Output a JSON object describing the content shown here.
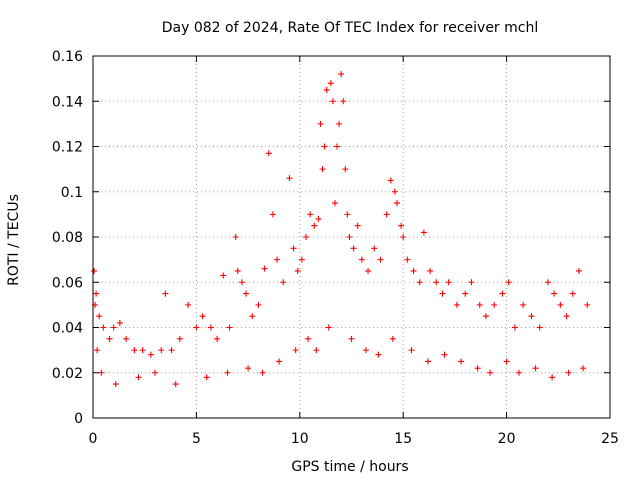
{
  "chart_data": {
    "type": "scatter",
    "title": "Day 082 of 2024, Rate Of TEC Index for receiver mchl",
    "xlabel": "GPS time / hours",
    "ylabel": "ROTI / TECUs",
    "xlim": [
      0,
      25
    ],
    "ylim": [
      0,
      0.16
    ],
    "xticks": [
      0,
      5,
      10,
      15,
      20,
      25
    ],
    "xtick_labels": [
      "0",
      "5",
      "10",
      "15",
      "20",
      "25"
    ],
    "yticks": [
      0,
      0.02,
      0.04,
      0.06,
      0.08,
      0.1,
      0.12,
      0.14,
      0.16
    ],
    "ytick_labels": [
      "0",
      "0.02",
      "0.04",
      "0.06",
      "0.08",
      "0.1",
      "0.12",
      "0.14",
      "0.16"
    ],
    "grid": true,
    "marker": "plus",
    "color": "#ff0000",
    "series": [
      {
        "name": "ROTI",
        "x": [
          0.05,
          0.1,
          0.15,
          0.2,
          0.3,
          0.5,
          0.8,
          1.0,
          1.3,
          1.6,
          2.0,
          2.4,
          2.8,
          3.3,
          3.5,
          3.8,
          4.2,
          4.6,
          5.0,
          5.3,
          5.7,
          6.0,
          6.3,
          6.6,
          6.9,
          7.0,
          7.2,
          7.4,
          7.7,
          8.0,
          8.3,
          8.5,
          8.7,
          8.9,
          9.2,
          9.5,
          9.7,
          9.9,
          10.1,
          10.3,
          10.5,
          10.7,
          10.9,
          11.0,
          11.1,
          11.2,
          11.3,
          11.5,
          11.6,
          11.7,
          11.8,
          11.9,
          12.0,
          12.1,
          12.2,
          12.3,
          12.4,
          12.6,
          12.8,
          13.0,
          13.3,
          13.6,
          13.9,
          14.2,
          14.4,
          14.6,
          14.7,
          14.9,
          15.0,
          15.2,
          15.5,
          15.8,
          16.0,
          16.3,
          16.6,
          16.9,
          17.2,
          17.6,
          18.0,
          18.3,
          18.7,
          19.0,
          19.4,
          19.8,
          20.1,
          20.4,
          20.8,
          21.2,
          21.6,
          22.0,
          22.3,
          22.6,
          22.9,
          23.2,
          23.5,
          23.9,
          0.4,
          1.1,
          2.2,
          3.0,
          4.0,
          5.5,
          6.5,
          7.5,
          8.2,
          9.0,
          9.8,
          10.4,
          10.8,
          11.4,
          12.5,
          13.2,
          13.8,
          14.5,
          15.4,
          16.2,
          17.0,
          17.8,
          18.6,
          19.2,
          20.0,
          20.6,
          21.4,
          22.2,
          23.0,
          23.7
        ],
        "y": [
          0.065,
          0.05,
          0.055,
          0.03,
          0.045,
          0.04,
          0.035,
          0.04,
          0.042,
          0.035,
          0.03,
          0.03,
          0.028,
          0.03,
          0.055,
          0.03,
          0.035,
          0.05,
          0.04,
          0.045,
          0.04,
          0.035,
          0.063,
          0.04,
          0.08,
          0.065,
          0.06,
          0.055,
          0.045,
          0.05,
          0.066,
          0.117,
          0.09,
          0.07,
          0.06,
          0.106,
          0.075,
          0.065,
          0.07,
          0.08,
          0.09,
          0.085,
          0.088,
          0.13,
          0.11,
          0.12,
          0.145,
          0.148,
          0.14,
          0.095,
          0.12,
          0.13,
          0.152,
          0.14,
          0.11,
          0.09,
          0.08,
          0.075,
          0.085,
          0.07,
          0.065,
          0.075,
          0.07,
          0.09,
          0.105,
          0.1,
          0.095,
          0.085,
          0.08,
          0.07,
          0.065,
          0.06,
          0.082,
          0.065,
          0.06,
          0.055,
          0.06,
          0.05,
          0.055,
          0.06,
          0.05,
          0.045,
          0.05,
          0.055,
          0.06,
          0.04,
          0.05,
          0.045,
          0.04,
          0.06,
          0.055,
          0.05,
          0.045,
          0.055,
          0.065,
          0.05,
          0.02,
          0.015,
          0.018,
          0.02,
          0.015,
          0.018,
          0.02,
          0.022,
          0.02,
          0.025,
          0.03,
          0.035,
          0.03,
          0.04,
          0.035,
          0.03,
          0.028,
          0.035,
          0.03,
          0.025,
          0.028,
          0.025,
          0.022,
          0.02,
          0.025,
          0.02,
          0.022,
          0.018,
          0.02,
          0.022
        ]
      }
    ]
  }
}
